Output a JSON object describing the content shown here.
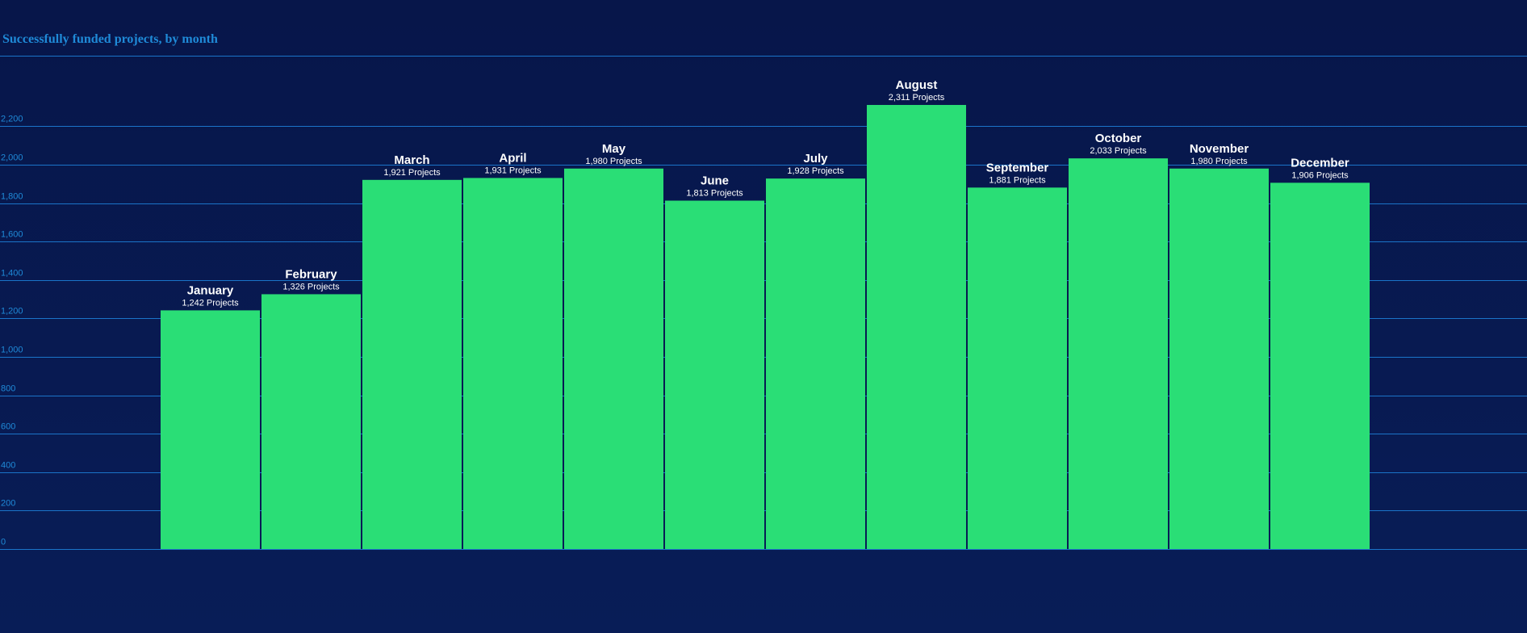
{
  "colors": {
    "background_top": "#07164a",
    "background_bottom": "#081d57",
    "title": "#1f8ad8",
    "gridline": "#1a74c9",
    "tick_label": "#1f8ad8",
    "bar_fill": "#2ade76",
    "bar_label": "#ffffff"
  },
  "chart_data": {
    "type": "bar",
    "title": "Successfully funded projects, by month",
    "xlabel": "",
    "ylabel": "",
    "ylim": [
      0,
      2400
    ],
    "yticks": [
      0,
      200,
      400,
      600,
      800,
      1000,
      1200,
      1400,
      1600,
      1800,
      2000,
      2200
    ],
    "ytick_labels": [
      "0",
      "200",
      "400",
      "600",
      "800",
      "1,000",
      "1,200",
      "1,400",
      "1,600",
      "1,800",
      "2,000",
      "2,200"
    ],
    "grid": true,
    "legend": "none",
    "categories": [
      "January",
      "February",
      "March",
      "April",
      "May",
      "June",
      "July",
      "August",
      "September",
      "October",
      "November",
      "December"
    ],
    "values": [
      1242,
      1326,
      1921,
      1931,
      1980,
      1813,
      1928,
      2311,
      1881,
      2033,
      1980,
      1906
    ],
    "value_labels": [
      "1,242 Projects",
      "1,326 Projects",
      "1,921 Projects",
      "1,931 Projects",
      "1,980 Projects",
      "1,813 Projects",
      "1,928 Projects",
      "2,311 Projects",
      "1,881 Projects",
      "2,033 Projects",
      "1,980 Projects",
      "1,906 Projects"
    ]
  }
}
